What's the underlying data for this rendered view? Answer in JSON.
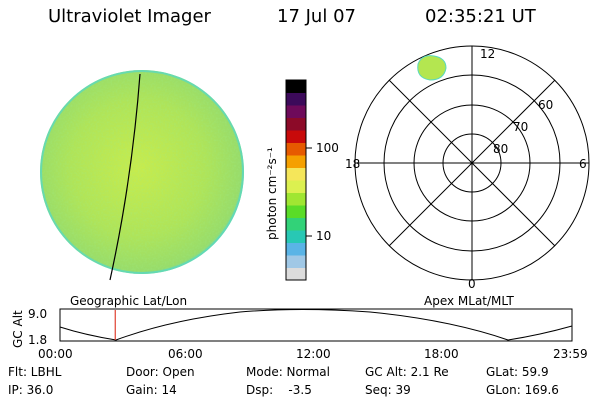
{
  "header": {
    "title": "Ultraviolet Imager",
    "date": "17 Jul 07",
    "time": "02:35:21 UT"
  },
  "colorbar": {
    "label": "photon cm⁻²s⁻¹",
    "ticks": [
      "100",
      "10"
    ],
    "colors": [
      "#000000",
      "#3c0a5a",
      "#6e0a5a",
      "#8c0a28",
      "#c80a0a",
      "#e65a00",
      "#f5a000",
      "#f5e65a",
      "#dcf050",
      "#a0e632",
      "#5adc28",
      "#32d278",
      "#28c8b4",
      "#5ab4e6",
      "#a0c8e6",
      "#dcdcdc"
    ]
  },
  "polar": {
    "mlt_labels": {
      "top": "12",
      "right": "6",
      "bottom": "0",
      "left": "18"
    },
    "lat_labels": [
      "60",
      "70",
      "80"
    ]
  },
  "labels": {
    "geo": "Geographic Lat/Lon",
    "apex": "Apex MLat/MLT"
  },
  "altplot": {
    "axis_label": "GC Alt",
    "y_max": "9.0",
    "y_min": "1.8",
    "x_ticks": [
      "00:00",
      "06:00",
      "12:00",
      "18:00",
      "23:59"
    ],
    "marker_time_hours": 2.59
  },
  "info": {
    "row1": [
      "Flt: LBHL",
      "Door: Open",
      "Mode: Normal",
      "GC Alt: 2.1 Re",
      "GLat: 59.9"
    ],
    "row2": [
      "IP: 36.0",
      "Gain: 14",
      "Dsp:    -3.5",
      "Seq: 39",
      "GLon: 169.6"
    ]
  },
  "colors": {
    "disk_base": "#a8e060",
    "disk_edge": "#5ad8c0",
    "marker": "#e04030"
  }
}
